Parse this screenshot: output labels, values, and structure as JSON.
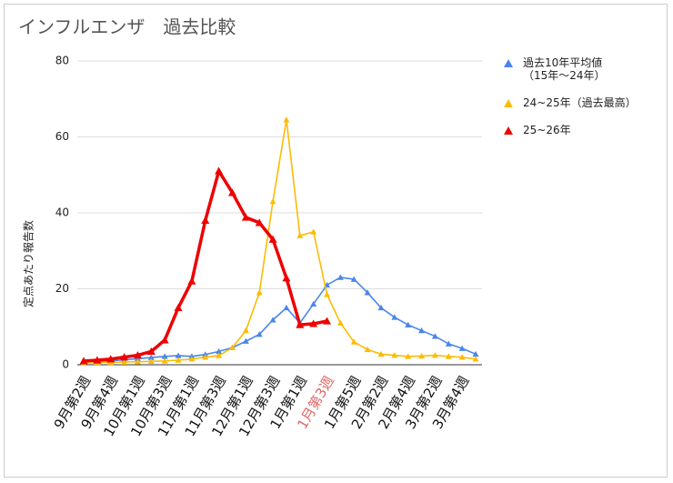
{
  "chart_data": {
    "type": "line",
    "title": "インフルエンザ　過去比較",
    "y_label": "定点あたり報告数",
    "categories": [
      "9月第2週",
      null,
      "9月第4週",
      null,
      "10月第1週",
      null,
      "10月第3週",
      null,
      "11月第1週",
      null,
      "11月第3週",
      null,
      "12月第1週",
      null,
      "12月第3週",
      null,
      "1月第1週",
      null,
      "1月第3週",
      null,
      "1月第5週",
      null,
      "2月第2週",
      null,
      "2月第4週",
      null,
      "3月第2週",
      null,
      "3月第4週",
      null
    ],
    "highlight_index": 18,
    "highlight_color": "#e06666",
    "ylim": [
      0,
      80
    ],
    "yticks": [
      0,
      20,
      40,
      60,
      80
    ],
    "grid": true,
    "series": [
      {
        "name": "過去10年平均値\n（15年〜24年）",
        "color": "#4a86e8",
        "values": [
          0.8,
          0.9,
          1,
          1.3,
          1.6,
          1.9,
          2.2,
          2.4,
          2.2,
          2.7,
          3.5,
          4.5,
          6.2,
          8,
          11.8,
          15,
          11,
          16,
          21,
          23,
          22.5,
          19,
          15,
          12.5,
          10.5,
          9,
          7.5,
          5.5,
          4.3,
          2.8
        ]
      },
      {
        "name": "24~25年（過去最高）",
        "color": "#fbbc04",
        "values": [
          0.5,
          0.6,
          0.6,
          0.7,
          0.8,
          0.9,
          1,
          1.2,
          1.5,
          2,
          2.4,
          4.5,
          9,
          19,
          43,
          64.5,
          34,
          35,
          18.5,
          11,
          6,
          4,
          2.8,
          2.5,
          2.2,
          2.3,
          2.5,
          2.2,
          2,
          1.5
        ]
      },
      {
        "name": "25~26年",
        "color": "#ee0000",
        "values": [
          1,
          1.2,
          1.5,
          2,
          2.5,
          3.5,
          6.5,
          15,
          22,
          38,
          51,
          45.3,
          38.8,
          37.4,
          33,
          22.8,
          10.5,
          10.8,
          11.5,
          null,
          null,
          null,
          null,
          null,
          null,
          null,
          null,
          null,
          null,
          null
        ]
      }
    ]
  }
}
